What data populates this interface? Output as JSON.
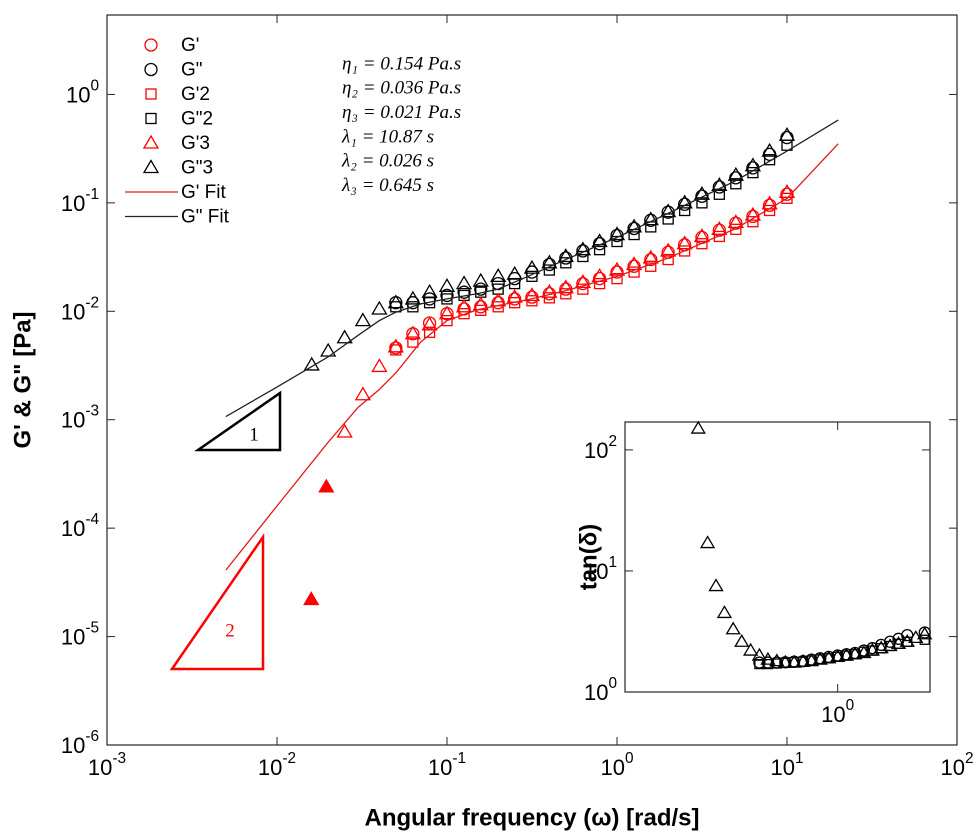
{
  "chart_data": [
    {
      "type": "scatter",
      "log_x": true,
      "log_y": true,
      "xlabel": "Angular frequency (ω) [rad/s]",
      "ylabel": "G' & G\" [Pa]",
      "xlim": [
        0.001,
        100
      ],
      "ylim": [
        1e-06,
        5.4
      ],
      "xticks": [
        {
          "value": 0.001,
          "label": "10^-3"
        },
        {
          "value": 0.01,
          "label": "10^-2"
        },
        {
          "value": 0.1,
          "label": "10^-1"
        },
        {
          "value": 1,
          "label": "10^0"
        },
        {
          "value": 10,
          "label": "10^1"
        },
        {
          "value": 100,
          "label": "10^2"
        }
      ],
      "yticks": [
        {
          "value": 1e-06,
          "label": "10^-6"
        },
        {
          "value": 1e-05,
          "label": "10^-5"
        },
        {
          "value": 0.0001,
          "label": "10^-4"
        },
        {
          "value": 0.001,
          "label": "10^-3"
        },
        {
          "value": 0.01,
          "label": "10^-2"
        },
        {
          "value": 0.1,
          "label": "10^-1"
        },
        {
          "value": 1,
          "label": "10^0"
        }
      ],
      "legend": "upper left",
      "annotations": [
        "η₁ = 0.154 Pa.s",
        "η₂ = 0.036 Pa.s",
        "η₃ = 0.021 Pa.s",
        "λ₁ = 10.87 s",
        "λ₂ = 0.026 s",
        "λ₃ = 0.645 s"
      ],
      "slope_labels": [
        "1",
        "2"
      ],
      "series": [
        {
          "name": "G'",
          "color": "#ff0000",
          "marker": "o",
          "x": [
            0.05,
            0.063,
            0.079,
            0.1,
            0.126,
            0.158,
            0.2,
            0.25,
            0.316,
            0.4,
            0.5,
            0.63,
            0.79,
            1,
            1.26,
            1.58,
            2,
            2.5,
            3.16,
            4,
            5,
            6.3,
            7.9,
            10
          ],
          "values": [
            0.0046,
            0.0062,
            0.0078,
            0.0095,
            0.0105,
            0.011,
            0.012,
            0.013,
            0.0135,
            0.0145,
            0.016,
            0.018,
            0.02,
            0.023,
            0.026,
            0.03,
            0.035,
            0.041,
            0.048,
            0.056,
            0.065,
            0.075,
            0.095,
            0.12
          ]
        },
        {
          "name": "G\"",
          "color": "#000000",
          "marker": "o",
          "x": [
            0.05,
            0.063,
            0.079,
            0.1,
            0.126,
            0.158,
            0.2,
            0.25,
            0.316,
            0.4,
            0.5,
            0.63,
            0.79,
            1,
            1.26,
            1.58,
            2,
            2.5,
            3.16,
            4,
            5,
            6.3,
            7.9,
            10
          ],
          "values": [
            0.012,
            0.012,
            0.013,
            0.014,
            0.015,
            0.016,
            0.018,
            0.02,
            0.023,
            0.027,
            0.031,
            0.036,
            0.042,
            0.05,
            0.058,
            0.069,
            0.082,
            0.097,
            0.115,
            0.14,
            0.17,
            0.21,
            0.28,
            0.4
          ]
        },
        {
          "name": "G'2",
          "color": "#ff0000",
          "marker": "s",
          "x": [
            0.05,
            0.063,
            0.079,
            0.1,
            0.126,
            0.158,
            0.2,
            0.25,
            0.316,
            0.4,
            0.5,
            0.63,
            0.79,
            1,
            1.26,
            1.58,
            2,
            2.5,
            3.16,
            4,
            5,
            6.3,
            7.9,
            10
          ],
          "values": [
            0.0044,
            0.0052,
            0.0064,
            0.0082,
            0.0095,
            0.0102,
            0.011,
            0.012,
            0.0125,
            0.0133,
            0.0145,
            0.016,
            0.018,
            0.02,
            0.023,
            0.026,
            0.03,
            0.036,
            0.042,
            0.049,
            0.057,
            0.067,
            0.085,
            0.11
          ]
        },
        {
          "name": "G\"2",
          "color": "#000000",
          "marker": "s",
          "x": [
            0.05,
            0.063,
            0.079,
            0.1,
            0.126,
            0.158,
            0.2,
            0.25,
            0.316,
            0.4,
            0.5,
            0.63,
            0.79,
            1,
            1.26,
            1.58,
            2,
            2.5,
            3.16,
            4,
            5,
            6.3,
            7.9,
            10
          ],
          "values": [
            0.011,
            0.011,
            0.012,
            0.013,
            0.014,
            0.015,
            0.016,
            0.018,
            0.021,
            0.024,
            0.028,
            0.032,
            0.037,
            0.044,
            0.051,
            0.06,
            0.071,
            0.085,
            0.1,
            0.12,
            0.15,
            0.19,
            0.25,
            0.34
          ]
        },
        {
          "name": "G'3",
          "color": "#ff0000",
          "marker": "^",
          "x": [
            0.025,
            0.032,
            0.04,
            0.05,
            0.063,
            0.079,
            0.1,
            0.126,
            0.158,
            0.2,
            0.25,
            0.316,
            0.4,
            0.5,
            0.63,
            0.79,
            1,
            1.26,
            1.58,
            2,
            2.5,
            3.16,
            4,
            5,
            6.3,
            7.9,
            10
          ],
          "values": [
            0.00077,
            0.0017,
            0.0031,
            0.0047,
            0.0062,
            0.0075,
            0.0095,
            0.011,
            0.0115,
            0.0125,
            0.0135,
            0.014,
            0.015,
            0.0165,
            0.0185,
            0.021,
            0.024,
            0.027,
            0.031,
            0.036,
            0.042,
            0.049,
            0.057,
            0.066,
            0.077,
            0.098,
            0.125
          ]
        },
        {
          "name": "G\"3",
          "color": "#000000",
          "marker": "^",
          "x": [
            0.016,
            0.02,
            0.025,
            0.032,
            0.04,
            0.05,
            0.063,
            0.079,
            0.1,
            0.126,
            0.158,
            0.2,
            0.25,
            0.316,
            0.4,
            0.5,
            0.63,
            0.79,
            1,
            1.26,
            1.58,
            2,
            2.5,
            3.16,
            4,
            5,
            6.3,
            7.9,
            10
          ],
          "values": [
            0.0032,
            0.0043,
            0.0057,
            0.0082,
            0.0105,
            0.012,
            0.013,
            0.015,
            0.017,
            0.018,
            0.019,
            0.021,
            0.022,
            0.025,
            0.028,
            0.032,
            0.037,
            0.044,
            0.051,
            0.06,
            0.07,
            0.083,
            0.1,
            0.12,
            0.145,
            0.18,
            0.22,
            0.3,
            0.42
          ]
        },
        {
          "name": "G' Fit",
          "color": "#e31a1c",
          "marker": "-",
          "x": [
            0.005,
            0.01,
            0.02,
            0.03,
            0.04,
            0.05,
            0.07,
            0.1,
            0.15,
            0.2,
            0.3,
            0.5,
            1,
            2,
            5,
            10,
            20
          ],
          "values": [
            4.1e-05,
            0.00016,
            0.00062,
            0.0013,
            0.0019,
            0.0027,
            0.0052,
            0.0082,
            0.0103,
            0.0113,
            0.0128,
            0.0155,
            0.021,
            0.031,
            0.058,
            0.11,
            0.35
          ]
        },
        {
          "name": "G\" Fit",
          "color": "#222222",
          "marker": "-",
          "x": [
            0.005,
            0.01,
            0.02,
            0.03,
            0.04,
            0.05,
            0.07,
            0.1,
            0.15,
            0.2,
            0.3,
            0.5,
            1,
            2,
            5,
            10,
            20
          ],
          "values": [
            0.00107,
            0.002,
            0.0038,
            0.006,
            0.0082,
            0.0098,
            0.0117,
            0.013,
            0.0145,
            0.016,
            0.021,
            0.03,
            0.048,
            0.08,
            0.16,
            0.3,
            0.58
          ]
        },
        {
          "color": "#ff0000",
          "marker": "^",
          "filled": true,
          "x": [
            0.0159,
            0.0195
          ],
          "values": [
            2.2e-05,
            0.00024
          ]
        }
      ]
    },
    {
      "type": "scatter",
      "log_x": true,
      "log_y": true,
      "ylabel": "tan(δ)",
      "xlim": [
        0.0036,
        11.5
      ],
      "ylim": [
        1,
        170
      ],
      "xticks": [
        {
          "value": 1,
          "label": "10^0"
        }
      ],
      "yticks": [
        {
          "value": 1,
          "label": "10^0"
        },
        {
          "value": 10,
          "label": "10^1"
        },
        {
          "value": 100,
          "label": "10^2"
        }
      ],
      "series": [
        {
          "color": "#000000",
          "marker": "^",
          "x": [
            0.025,
            0.032,
            0.04,
            0.05,
            0.063,
            0.079,
            0.1,
            0.126,
            0.158,
            0.2,
            0.25,
            0.316,
            0.4,
            0.5,
            0.63,
            0.79,
            1,
            1.26,
            1.58,
            2,
            2.5,
            3.16,
            4,
            5,
            6.3,
            7.9,
            10
          ],
          "values": [
            150,
            17,
            7.5,
            4.5,
            3.3,
            2.6,
            2.2,
            2.0,
            1.85,
            1.8,
            1.75,
            1.75,
            1.78,
            1.8,
            1.85,
            1.9,
            1.95,
            2.0,
            2.05,
            2.1,
            2.2,
            2.3,
            2.4,
            2.5,
            2.6,
            2.8,
            3.0
          ]
        },
        {
          "color": "#000000",
          "marker": "o",
          "x": [
            0.126,
            0.158,
            0.2,
            0.25,
            0.316,
            0.4,
            0.5,
            0.63,
            0.79,
            1,
            1.26,
            1.58,
            2,
            2.5,
            3.16,
            4,
            5,
            6.3,
            10
          ],
          "values": [
            1.75,
            1.75,
            1.75,
            1.76,
            1.78,
            1.8,
            1.85,
            1.9,
            1.95,
            2.0,
            2.05,
            2.1,
            2.2,
            2.3,
            2.45,
            2.6,
            2.75,
            2.95,
            3.1
          ]
        },
        {
          "color": "#000000",
          "marker": "s",
          "x": [
            0.126,
            0.158,
            0.2,
            0.25,
            0.316,
            0.4,
            0.5,
            0.63,
            0.79,
            1,
            1.26,
            1.58,
            2,
            2.5,
            3.16,
            4,
            5,
            6.3,
            10
          ],
          "values": [
            1.7,
            1.7,
            1.72,
            1.74,
            1.76,
            1.78,
            1.82,
            1.86,
            1.9,
            1.95,
            2.0,
            2.05,
            2.15,
            2.2,
            2.3,
            2.4,
            2.5,
            2.6,
            2.7
          ]
        }
      ]
    }
  ]
}
